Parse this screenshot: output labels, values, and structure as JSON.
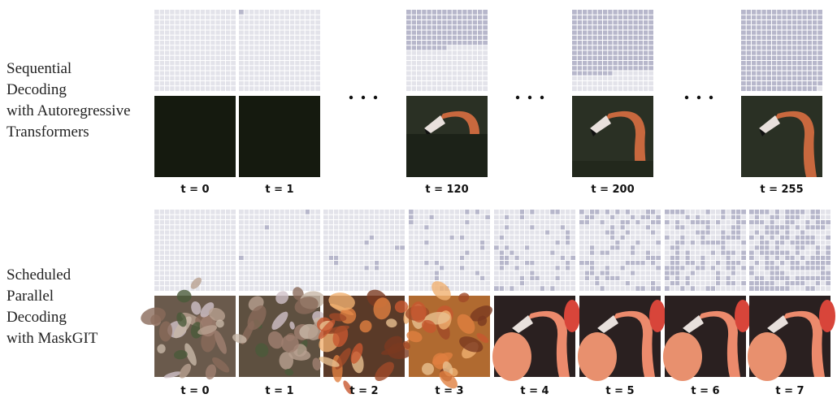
{
  "sequential": {
    "label_lines": [
      "Sequential",
      "Decoding",
      "with Autoregressive",
      "Transformers"
    ],
    "steps": [
      "t = 0",
      "t = 1",
      "t = 120",
      "t = 200",
      "t = 255"
    ]
  },
  "maskgit": {
    "label_lines": [
      "Scheduled",
      "Parallel",
      "Decoding",
      "with MaskGIT"
    ],
    "steps": [
      "t = 0",
      "t = 1",
      "t = 2",
      "t = 3",
      "t = 4",
      "t = 5",
      "t = 6",
      "t = 7"
    ]
  }
}
